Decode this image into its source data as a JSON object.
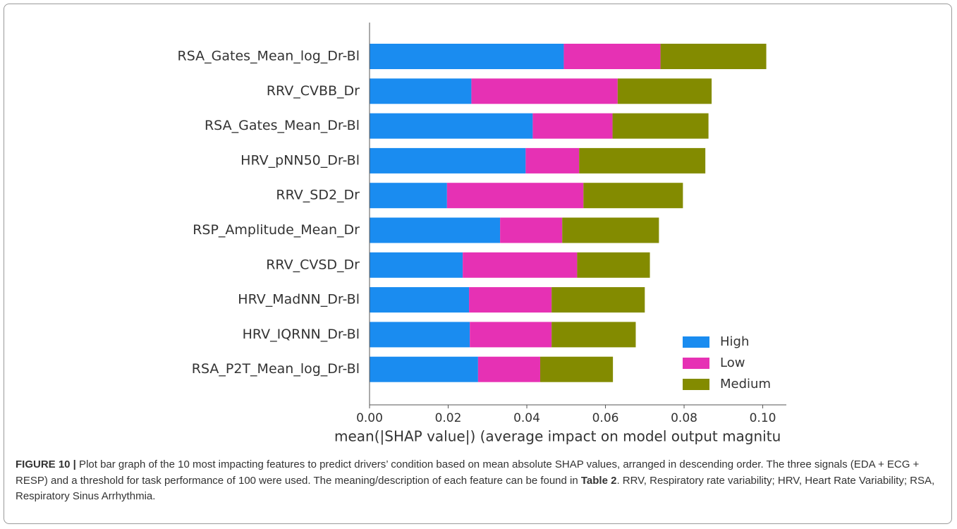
{
  "chart_data": {
    "type": "stacked-barh",
    "categories": [
      "RSA_Gates_Mean_log_Dr-Bl",
      "RRV_CVBB_Dr",
      "RSA_Gates_Mean_Dr-Bl",
      "HRV_pNN50_Dr-Bl",
      "RRV_SD2_Dr",
      "RSP_Amplitude_Mean_Dr",
      "RRV_CVSD_Dr",
      "HRV_MadNN_Dr-Bl",
      "HRV_IQRNN_Dr-Bl",
      "RSA_P2T_Mean_log_Dr-Bl"
    ],
    "series": [
      {
        "name": "High",
        "color": "#1a8cf0",
        "values": [
          0.0494,
          0.0259,
          0.0415,
          0.0397,
          0.0197,
          0.0332,
          0.0237,
          0.0253,
          0.0255,
          0.0276
        ]
      },
      {
        "name": "Low",
        "color": "#e631b4",
        "values": [
          0.0246,
          0.0372,
          0.0203,
          0.0136,
          0.0347,
          0.0158,
          0.0291,
          0.021,
          0.0208,
          0.0158
        ]
      },
      {
        "name": "Medium",
        "color": "#838b00",
        "values": [
          0.0269,
          0.0239,
          0.0244,
          0.0321,
          0.0253,
          0.0246,
          0.0185,
          0.0237,
          0.0214,
          0.0185
        ]
      }
    ],
    "xlabel": "mean(|SHAP value|) (average impact on model output magnitu",
    "xlim": [
      0,
      0.106
    ],
    "xticks": [
      {
        "value": 0,
        "label": "0.00"
      },
      {
        "value": 0.02,
        "label": "0.02"
      },
      {
        "value": 0.04,
        "label": "0.04"
      },
      {
        "value": 0.06,
        "label": "0.06"
      },
      {
        "value": 0.08,
        "label": "0.08"
      },
      {
        "value": 0.1,
        "label": "0.10"
      }
    ],
    "legend": "lower right",
    "grid": false
  },
  "caption": {
    "label": "FIGURE 10 |",
    "parts": [
      " Plot bar graph of the 10 most impacting features to predict drivers’ condition based on mean absolute SHAP values, arranged in descending order. The three signals (EDA + ECG + RESP) and a threshold for task performance of 100 were used. The meaning/description of each feature can be found in ",
      "Table 2",
      ". RRV, Respiratory rate variability; HRV, Heart Rate Variability; RSA, Respiratory Sinus Arrhythmia."
    ]
  }
}
